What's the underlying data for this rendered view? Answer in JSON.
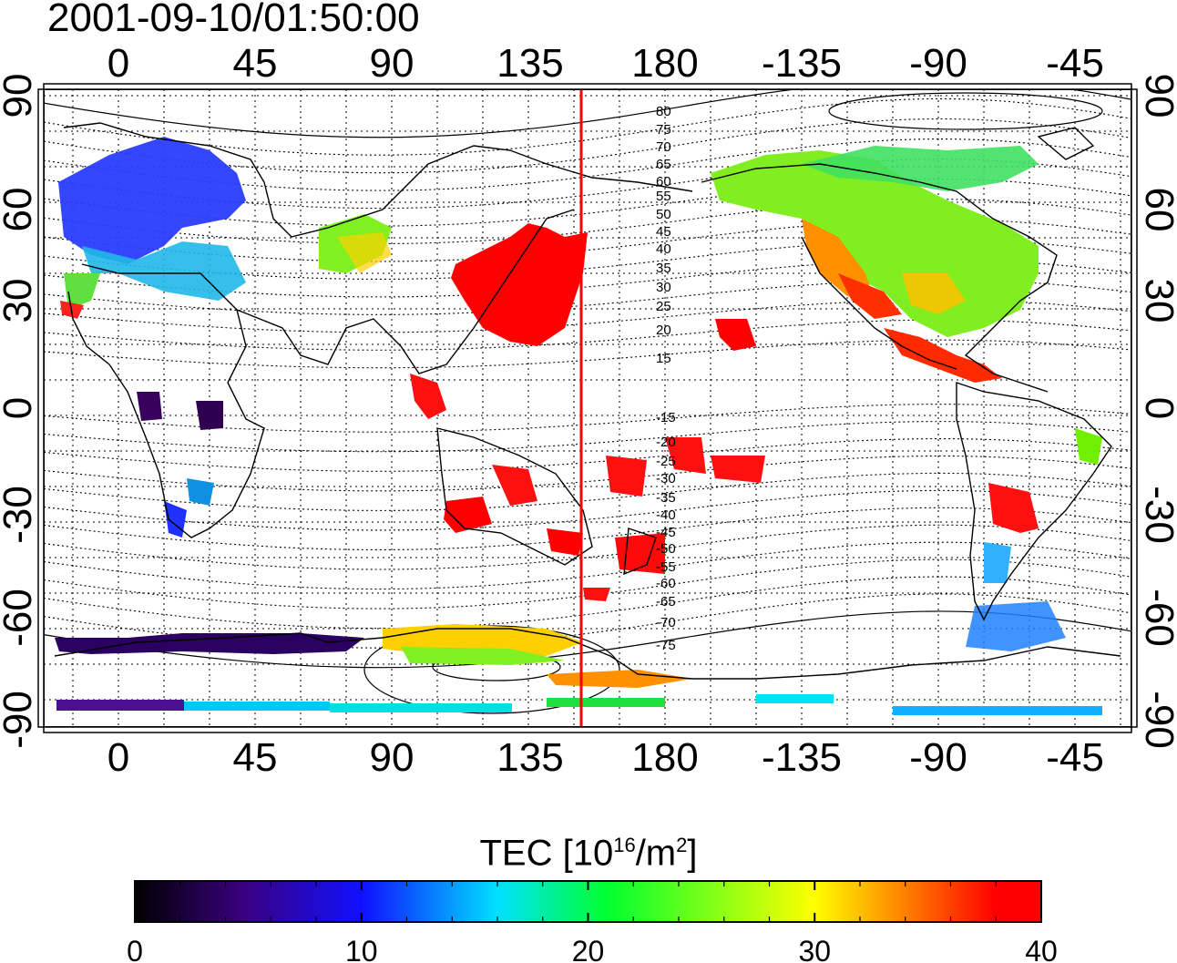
{
  "header": {
    "timestamp": "2001-09-10/01:50:00"
  },
  "map": {
    "top_longitude_labels": [
      "0",
      "45",
      "90",
      "135",
      "180",
      "-135",
      "-90",
      "-45"
    ],
    "bottom_longitude_labels": [
      "0",
      "45",
      "90",
      "135",
      "180",
      "-135",
      "-90",
      "-45"
    ],
    "left_latitude_labels": [
      "90",
      "60",
      "30",
      "0",
      "-30",
      "-60",
      "-90"
    ],
    "right_latitude_labels": [
      "90",
      "60",
      "30",
      "0",
      "-30",
      "-60",
      "-90"
    ],
    "contour_labels": [
      "80",
      "75",
      "70",
      "65",
      "60",
      "55",
      "50",
      "45",
      "40",
      "35",
      "30",
      "25",
      "20",
      "15",
      "-15",
      "-20",
      "-25",
      "-30",
      "-35",
      "-40",
      "-45",
      "-50",
      "-55",
      "-60",
      "-65",
      "-70",
      "-75"
    ],
    "colors": {
      "terminator": "#ff0000",
      "frame": "#000000",
      "grid": "#000000"
    }
  },
  "colorbar": {
    "title_prefix": "TEC  [10",
    "title_exp": "16",
    "title_mid": "/m",
    "title_exp2": "2",
    "title_suffix": "]",
    "tick_labels": [
      "0",
      "10",
      "20",
      "30",
      "40"
    ],
    "min": 0,
    "max": 40,
    "colors": [
      "#000000",
      "#3a0080",
      "#1010ff",
      "#00e0ff",
      "#00ff30",
      "#ffff00",
      "#ff8000",
      "#ff0000"
    ]
  }
}
